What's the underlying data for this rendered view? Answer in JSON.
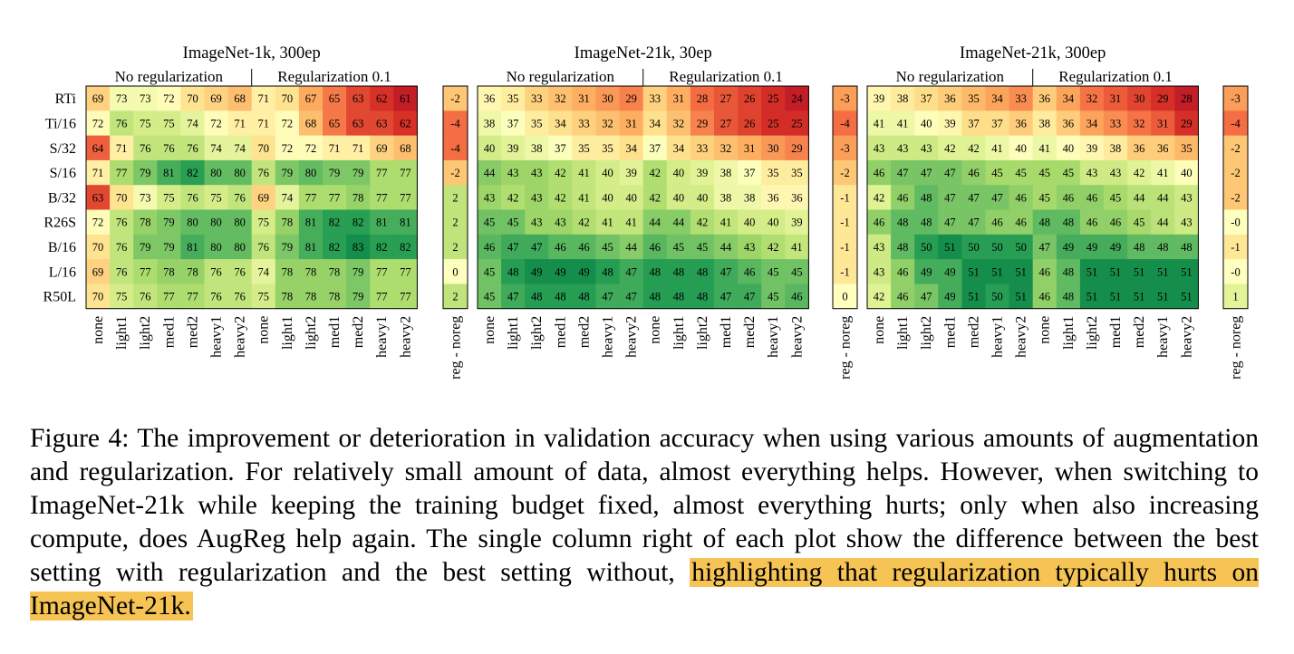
{
  "row_labels": [
    "RTi",
    "Ti/16",
    "S/32",
    "S/16",
    "B/32",
    "R26S",
    "B/16",
    "L/16",
    "R50L"
  ],
  "col_labels": [
    "none",
    "light1",
    "light2",
    "med1",
    "med2",
    "heavy1",
    "heavy2",
    "none",
    "light1",
    "light2",
    "med1",
    "med2",
    "heavy1",
    "heavy2"
  ],
  "group_labels": [
    "No regularization",
    "Regularization 0.1"
  ],
  "diff_label": "reg - noreg",
  "chart_data": [
    {
      "type": "heatmap",
      "title": "ImageNet-1k, 300ep",
      "values": [
        [
          69,
          73,
          73,
          72,
          70,
          69,
          68,
          71,
          70,
          67,
          65,
          63,
          62,
          61
        ],
        [
          72,
          76,
          75,
          75,
          74,
          72,
          71,
          71,
          72,
          68,
          65,
          63,
          63,
          62
        ],
        [
          64,
          71,
          76,
          76,
          76,
          74,
          74,
          70,
          72,
          72,
          71,
          71,
          69,
          68
        ],
        [
          71,
          77,
          79,
          81,
          82,
          80,
          80,
          76,
          79,
          80,
          79,
          79,
          77,
          77
        ],
        [
          63,
          70,
          73,
          75,
          76,
          75,
          76,
          69,
          74,
          77,
          77,
          78,
          77,
          77
        ],
        [
          72,
          76,
          78,
          79,
          80,
          80,
          80,
          75,
          78,
          81,
          82,
          82,
          81,
          81
        ],
        [
          70,
          76,
          79,
          79,
          81,
          80,
          80,
          76,
          79,
          81,
          82,
          83,
          82,
          82
        ],
        [
          69,
          76,
          77,
          78,
          78,
          76,
          76,
          74,
          78,
          78,
          78,
          79,
          77,
          77
        ],
        [
          70,
          75,
          76,
          77,
          77,
          76,
          76,
          75,
          78,
          78,
          78,
          79,
          77,
          77
        ]
      ],
      "diff": [
        "-2",
        "-4",
        "-4",
        "-2",
        "2",
        "2",
        "2",
        "0",
        "2"
      ]
    },
    {
      "type": "heatmap",
      "title": "ImageNet-21k, 30ep",
      "values": [
        [
          36,
          35,
          33,
          32,
          31,
          30,
          29,
          33,
          31,
          28,
          27,
          26,
          25,
          24
        ],
        [
          38,
          37,
          35,
          34,
          33,
          32,
          31,
          34,
          32,
          29,
          27,
          26,
          25,
          25
        ],
        [
          40,
          39,
          38,
          37,
          35,
          35,
          34,
          37,
          34,
          33,
          32,
          31,
          30,
          29
        ],
        [
          44,
          43,
          43,
          42,
          41,
          40,
          39,
          42,
          40,
          39,
          38,
          37,
          35,
          35
        ],
        [
          43,
          42,
          43,
          42,
          41,
          40,
          40,
          42,
          40,
          40,
          38,
          38,
          36,
          36
        ],
        [
          45,
          45,
          43,
          43,
          42,
          41,
          41,
          44,
          44,
          42,
          41,
          40,
          40,
          39
        ],
        [
          46,
          47,
          47,
          46,
          46,
          45,
          44,
          46,
          45,
          45,
          44,
          43,
          42,
          41
        ],
        [
          45,
          48,
          49,
          49,
          49,
          48,
          47,
          48,
          48,
          48,
          47,
          46,
          45,
          45
        ],
        [
          45,
          47,
          48,
          48,
          48,
          47,
          47,
          48,
          48,
          48,
          47,
          47,
          45,
          46
        ]
      ],
      "diff": [
        "-3",
        "-4",
        "-3",
        "-2",
        "-1",
        "-1",
        "-1",
        "-1",
        "0"
      ]
    },
    {
      "type": "heatmap",
      "title": "ImageNet-21k, 300ep",
      "values": [
        [
          39,
          38,
          37,
          36,
          35,
          34,
          33,
          36,
          34,
          32,
          31,
          30,
          29,
          28
        ],
        [
          41,
          41,
          40,
          39,
          37,
          37,
          36,
          38,
          36,
          34,
          33,
          32,
          31,
          29
        ],
        [
          43,
          43,
          43,
          42,
          42,
          41,
          40,
          41,
          40,
          39,
          38,
          36,
          36,
          35
        ],
        [
          46,
          47,
          47,
          47,
          46,
          45,
          45,
          45,
          45,
          43,
          43,
          42,
          41,
          40
        ],
        [
          42,
          46,
          48,
          47,
          47,
          47,
          46,
          45,
          46,
          46,
          45,
          44,
          44,
          43
        ],
        [
          46,
          48,
          48,
          47,
          47,
          46,
          46,
          48,
          48,
          46,
          46,
          45,
          44,
          43
        ],
        [
          43,
          48,
          50,
          51,
          50,
          50,
          50,
          47,
          49,
          49,
          49,
          48,
          48,
          48
        ],
        [
          43,
          46,
          49,
          49,
          51,
          51,
          51,
          46,
          48,
          51,
          51,
          51,
          51,
          51
        ],
        [
          42,
          46,
          47,
          49,
          51,
          50,
          51,
          46,
          48,
          51,
          51,
          51,
          51,
          51
        ]
      ],
      "diff": [
        "-3",
        "-4",
        "-2",
        "-2",
        "-2",
        "-0",
        "-1",
        "-0",
        "1"
      ]
    }
  ],
  "caption": {
    "text": "Figure 4: The improvement or deterioration in validation accuracy when using various amounts of augmentation and regularization. For relatively small amount of data, almost everything helps. However, when switching to ImageNet-21k while keeping the training budget fixed, almost everything hurts; only when also increasing compute, does AugReg help again. The single column right of each plot show the difference between the best setting with regularization and the best setting without,",
    "highlight": "highlighting that regularization typically hurts on ImageNet-21k.",
    "highlight_color": "#f6c454"
  }
}
